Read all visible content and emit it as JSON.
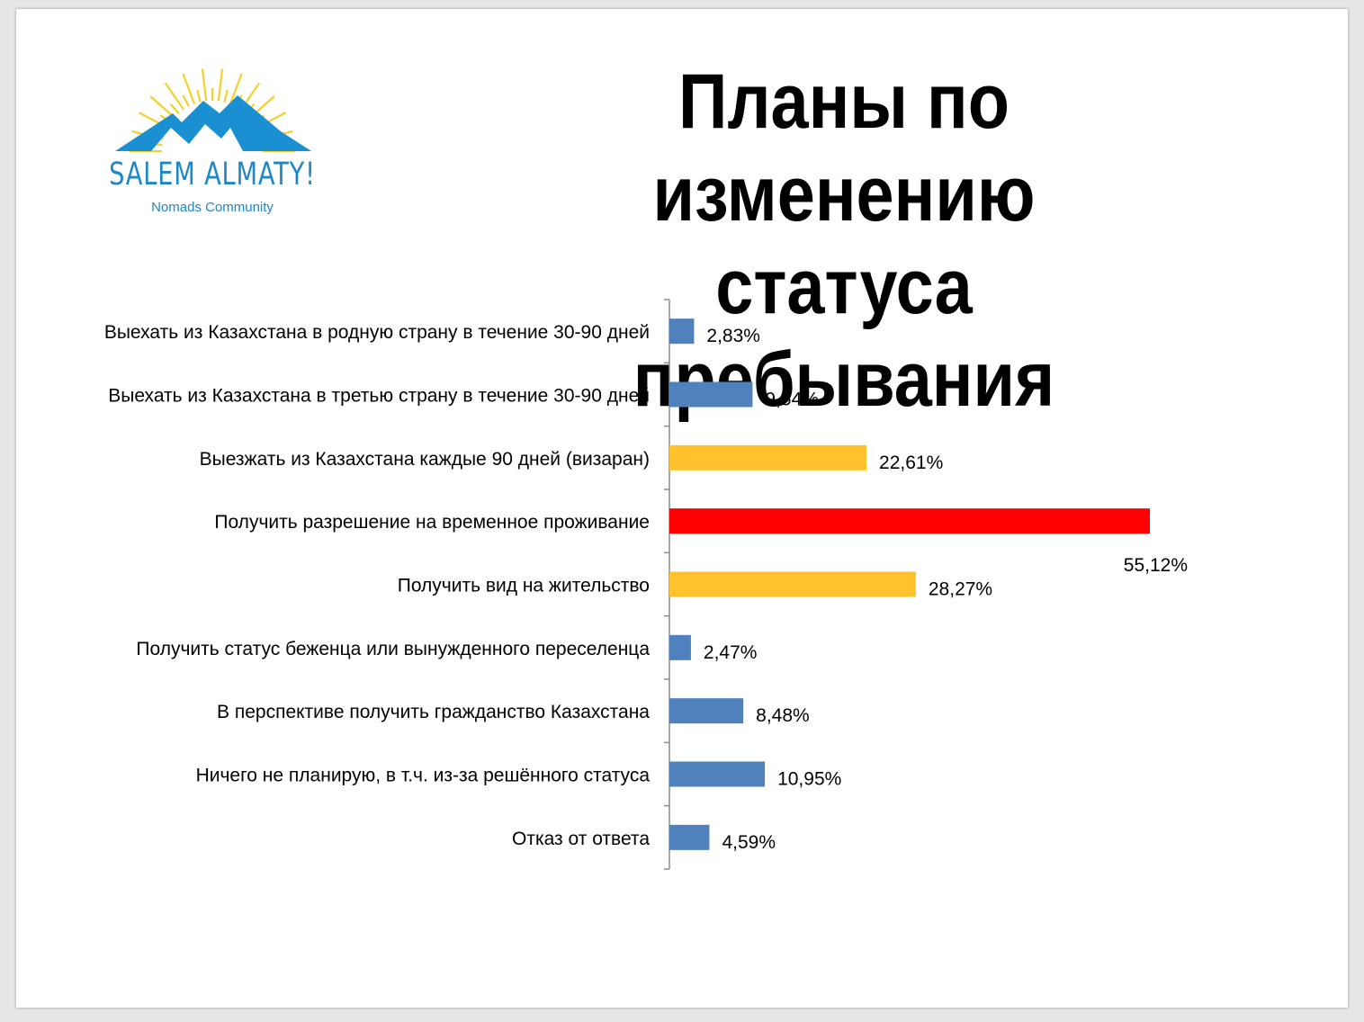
{
  "slide": {
    "title_line1": "Планы по изменению",
    "title_line2": "статуса пребывания"
  },
  "logo": {
    "name": "SALEM ALMATY!",
    "tagline": "Nomads Community",
    "colors": {
      "sun": "#f6cf2a",
      "mountain": "#1a8fd1"
    }
  },
  "chart_data": {
    "type": "bar",
    "orientation": "horizontal",
    "title": "Планы по изменению статуса пребывания",
    "categories": [
      "Выехать из Казахстана в родную страну в течение 30-90 дней",
      "Выехать из Казахстана в третью страну в течение 30-90 дней",
      "Выезжать из Казахстана каждые 90 дней (визаран)",
      "Получить разрешение на временное проживание",
      "Получить вид на жительство",
      "Получить статус беженца или вынужденного переселенца",
      "В перспективе получить гражданство Казахстана",
      "Ничего не планирую, в т.ч. из-за решённого статуса",
      "Отказ от ответа"
    ],
    "values": [
      2.83,
      9.54,
      22.61,
      55.12,
      28.27,
      2.47,
      8.48,
      10.95,
      4.59
    ],
    "value_labels": [
      "2,83%",
      "9,54%",
      "22,61%",
      "55,12%",
      "28,27%",
      "2,47%",
      "8,48%",
      "10,95%",
      "4,59%"
    ],
    "bar_colors": [
      "#4f81bd",
      "#4f81bd",
      "#ffc12c",
      "#ff0000",
      "#ffc12c",
      "#4f81bd",
      "#4f81bd",
      "#4f81bd",
      "#4f81bd"
    ],
    "unit": "%",
    "xlim": [
      0,
      55.12
    ],
    "grid": false,
    "legend": "none"
  }
}
